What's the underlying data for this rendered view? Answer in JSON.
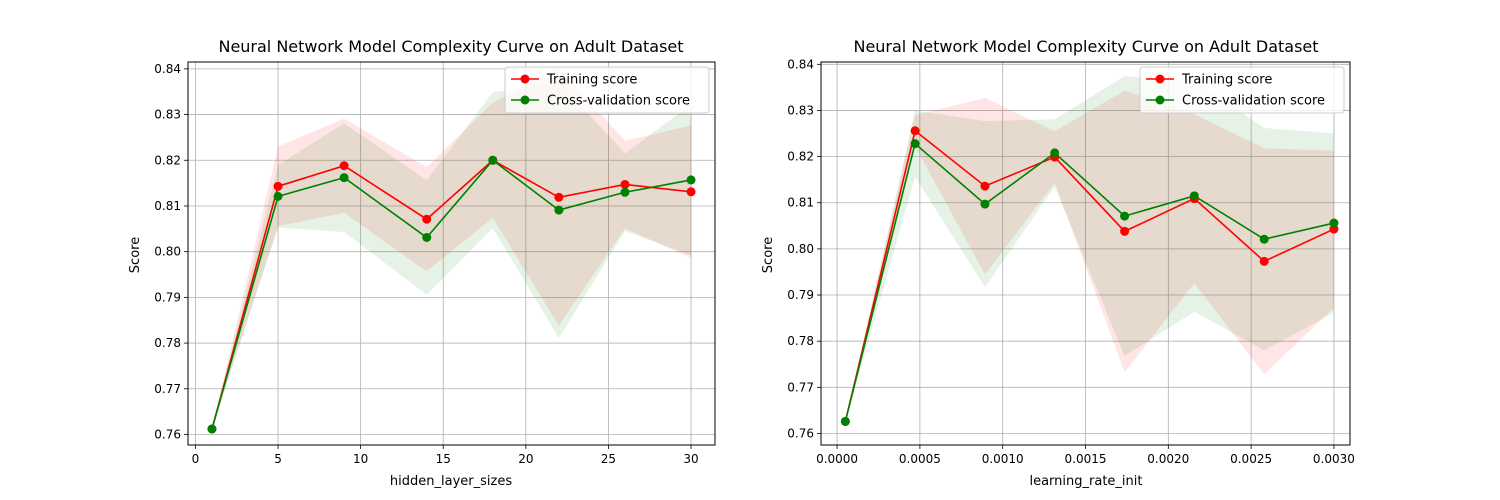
{
  "chart_data": [
    {
      "type": "line",
      "title": "Neural Network Model Complexity Curve on Adult Dataset",
      "xlabel": "hidden_layer_sizes",
      "ylabel": "Score",
      "xlim": [
        -0.45,
        31.45
      ],
      "ylim": [
        0.7577,
        0.8415
      ],
      "xticks": [
        0,
        5,
        10,
        15,
        20,
        25,
        30
      ],
      "xtick_labels": [
        "0",
        "5",
        "10",
        "15",
        "20",
        "25",
        "30"
      ],
      "yticks": [
        0.76,
        0.77,
        0.78,
        0.79,
        0.8,
        0.81,
        0.82,
        0.83,
        0.84
      ],
      "ytick_labels": [
        "0.76",
        "0.77",
        "0.78",
        "0.79",
        "0.80",
        "0.81",
        "0.82",
        "0.83",
        "0.84"
      ],
      "grid": true,
      "legend_position": "upper right",
      "x": [
        1,
        5,
        9,
        14,
        18,
        22,
        26,
        30
      ],
      "series": [
        {
          "name": "Training score",
          "color": "#ff0000",
          "values": [
            0.7612,
            0.8143,
            0.8188,
            0.8071,
            0.82,
            0.8119,
            0.8147,
            0.8131
          ],
          "band_lower": [
            0.7612,
            0.8056,
            0.8085,
            0.7957,
            0.8074,
            0.7838,
            0.8051,
            0.7986
          ],
          "band_upper": [
            0.7612,
            0.823,
            0.8291,
            0.8185,
            0.8326,
            0.84,
            0.8243,
            0.8276
          ]
        },
        {
          "name": "Cross-validation score",
          "color": "#008000",
          "values": [
            0.7612,
            0.8121,
            0.8162,
            0.8031,
            0.82,
            0.8091,
            0.813,
            0.8157
          ],
          "band_lower": [
            0.7612,
            0.8053,
            0.8043,
            0.7906,
            0.8051,
            0.7811,
            0.8045,
            0.7992
          ],
          "band_upper": [
            0.7612,
            0.8189,
            0.8281,
            0.8156,
            0.8349,
            0.8371,
            0.8215,
            0.8322
          ]
        }
      ]
    },
    {
      "type": "line",
      "title": "Neural Network Model Complexity Curve on Adult Dataset",
      "xlabel": "learning_rate_init",
      "ylabel": "Score",
      "xlim": [
        -9.7e-05,
        0.003097
      ],
      "ylim": [
        0.7575,
        0.8405
      ],
      "xticks": [
        0,
        0.0005,
        0.001,
        0.0015,
        0.002,
        0.0025,
        0.003
      ],
      "xtick_labels": [
        "0.0000",
        "0.0005",
        "0.0010",
        "0.0015",
        "0.0020",
        "0.0025",
        "0.0030"
      ],
      "yticks": [
        0.76,
        0.77,
        0.78,
        0.79,
        0.8,
        0.81,
        0.82,
        0.83,
        0.84
      ],
      "ytick_labels": [
        "0.76",
        "0.77",
        "0.78",
        "0.79",
        "0.80",
        "0.81",
        "0.82",
        "0.83",
        "0.84"
      ],
      "grid": true,
      "legend_position": "upper right",
      "x": [
        5e-05,
        0.000471,
        0.000893,
        0.001314,
        0.001736,
        0.002157,
        0.002579,
        0.003
      ],
      "series": [
        {
          "name": "Training score",
          "color": "#ff0000",
          "values": [
            0.7626,
            0.8256,
            0.8136,
            0.8199,
            0.8038,
            0.8109,
            0.7973,
            0.8043
          ],
          "band_lower": [
            0.7626,
            0.8222,
            0.7945,
            0.8143,
            0.7733,
            0.7926,
            0.7728,
            0.7873
          ],
          "band_upper": [
            0.7626,
            0.829,
            0.8327,
            0.8255,
            0.8343,
            0.8292,
            0.8218,
            0.8213
          ]
        },
        {
          "name": "Cross-validation score",
          "color": "#008000",
          "values": [
            0.7626,
            0.8228,
            0.8097,
            0.8208,
            0.8071,
            0.8115,
            0.8021,
            0.8056
          ],
          "band_lower": [
            0.7626,
            0.8156,
            0.7917,
            0.8135,
            0.7768,
            0.7864,
            0.778,
            0.7862
          ],
          "band_upper": [
            0.7626,
            0.83,
            0.8277,
            0.8281,
            0.8374,
            0.8366,
            0.8262,
            0.825
          ]
        }
      ]
    }
  ]
}
